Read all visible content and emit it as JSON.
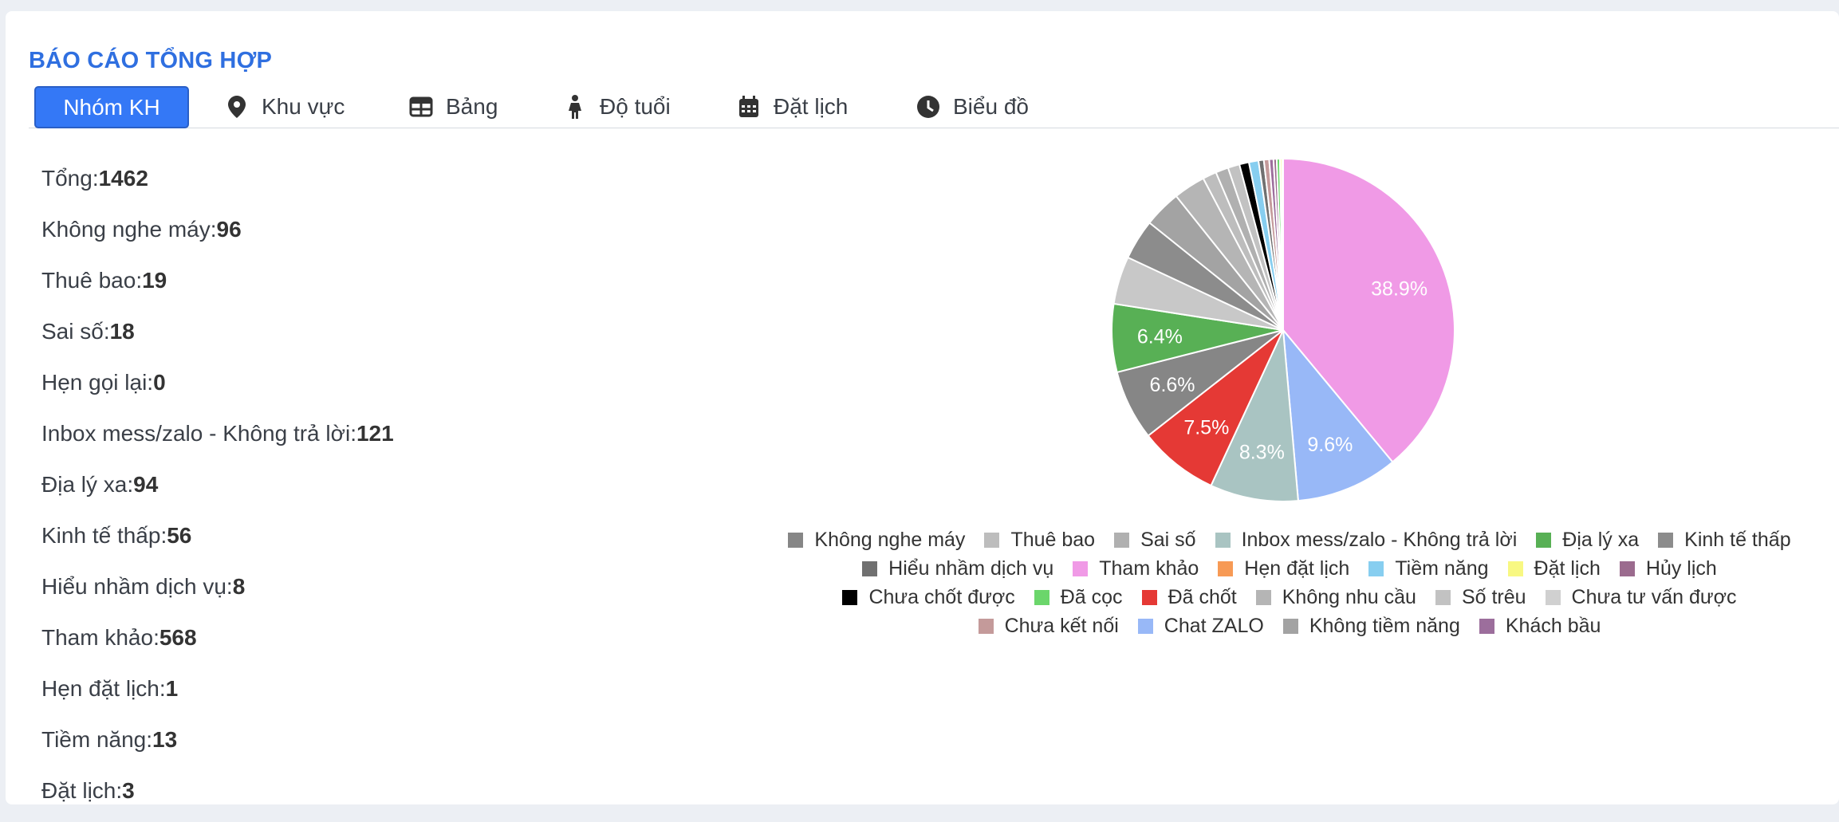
{
  "page": {
    "title": "BÁO CÁO TỔNG HỢP"
  },
  "tabs": [
    {
      "label": "Nhóm KH",
      "icon": ""
    },
    {
      "label": "Khu vực",
      "icon": "map-pin-icon"
    },
    {
      "label": "Bảng",
      "icon": "table-icon"
    },
    {
      "label": "Độ tuổi",
      "icon": "person-icon"
    },
    {
      "label": "Đặt lịch",
      "icon": "calendar-icon"
    },
    {
      "label": "Biểu đồ",
      "icon": "clock-icon"
    }
  ],
  "stats": [
    {
      "label": "Tổng:",
      "value": "1462"
    },
    {
      "label": "Không nghe máy:",
      "value": "96"
    },
    {
      "label": "Thuê bao:",
      "value": "19"
    },
    {
      "label": "Sai số:",
      "value": "18"
    },
    {
      "label": "Hẹn gọi lại:",
      "value": "0"
    },
    {
      "label": "Inbox mess/zalo - Không trả lời:",
      "value": "121"
    },
    {
      "label": "Địa lý xa:",
      "value": "94"
    },
    {
      "label": "Kinh tế thấp:",
      "value": "56"
    },
    {
      "label": "Hiểu nhầm dịch vụ:",
      "value": "8"
    },
    {
      "label": "Tham khảo:",
      "value": "568"
    },
    {
      "label": "Hẹn đặt lịch:",
      "value": "1"
    },
    {
      "label": "Tiềm năng:",
      "value": "13"
    },
    {
      "label": "Đặt lịch:",
      "value": "3"
    }
  ],
  "chart_data": {
    "type": "pie",
    "slices": [
      {
        "name": "Tham khảo",
        "value": 38.9,
        "color": "#f09ae6",
        "label": "38.9%"
      },
      {
        "name": "Chat ZALO",
        "value": 9.6,
        "color": "#98b8f7",
        "label": "9.6%"
      },
      {
        "name": "Inbox mess/zalo - Không trả lời",
        "value": 8.3,
        "color": "#a9c4c2",
        "label": "8.3%"
      },
      {
        "name": "Đã chốt",
        "value": 7.5,
        "color": "#e53935",
        "label": "7.5%"
      },
      {
        "name": "Không nghe máy",
        "value": 6.6,
        "color": "#868686",
        "label": "6.6%"
      },
      {
        "name": "Địa lý xa",
        "value": 6.4,
        "color": "#58b055",
        "label": "6.4%"
      },
      {
        "name": "Chưa tư vấn được",
        "value": 4.5,
        "color": "#c8c8c8",
        "label": ""
      },
      {
        "name": "Kinh tế thấp",
        "value": 3.8,
        "color": "#8c8c8c",
        "label": ""
      },
      {
        "name": "Không tiềm năng",
        "value": 3.5,
        "color": "#a3a3a3",
        "label": ""
      },
      {
        "name": "Không nhu cầu",
        "value": 3.0,
        "color": "#b5b5b5",
        "label": ""
      },
      {
        "name": "Thuê bao",
        "value": 1.3,
        "color": "#bdbdbd",
        "label": ""
      },
      {
        "name": "Sai số",
        "value": 1.2,
        "color": "#b0b0b0",
        "label": ""
      },
      {
        "name": "Số trêu",
        "value": 1.1,
        "color": "#c2c2c2",
        "label": ""
      },
      {
        "name": "Chưa chốt được",
        "value": 0.9,
        "color": "#000000",
        "label": ""
      },
      {
        "name": "Tiềm năng",
        "value": 0.9,
        "color": "#87cef0",
        "label": ""
      },
      {
        "name": "Hiểu nhầm dịch vụ",
        "value": 0.5,
        "color": "#707070",
        "label": ""
      },
      {
        "name": "Chưa kết nối",
        "value": 0.5,
        "color": "#c49a9a",
        "label": ""
      },
      {
        "name": "Khách bầu",
        "value": 0.4,
        "color": "#9c6e9c",
        "label": ""
      },
      {
        "name": "Hủy lịch",
        "value": 0.3,
        "color": "#9b6b8e",
        "label": ""
      },
      {
        "name": "Đã cọc",
        "value": 0.3,
        "color": "#6bd66b",
        "label": ""
      },
      {
        "name": "Đặt lịch",
        "value": 0.2,
        "color": "#f8f882",
        "label": ""
      },
      {
        "name": "Hẹn đặt lịch",
        "value": 0.1,
        "color": "#f79a55",
        "label": ""
      }
    ],
    "legend": [
      {
        "name": "Không nghe máy",
        "color": "#868686"
      },
      {
        "name": "Thuê bao",
        "color": "#bdbdbd"
      },
      {
        "name": "Sai số",
        "color": "#b0b0b0"
      },
      {
        "name": "Inbox mess/zalo - Không trả lời",
        "color": "#a9c4c2"
      },
      {
        "name": "Địa lý xa",
        "color": "#58b055"
      },
      {
        "name": "Kinh tế thấp",
        "color": "#8c8c8c"
      },
      {
        "name": "Hiểu nhầm dịch vụ",
        "color": "#707070"
      },
      {
        "name": "Tham khảo",
        "color": "#f09ae6"
      },
      {
        "name": "Hẹn đặt lịch",
        "color": "#f79a55"
      },
      {
        "name": "Tiềm năng",
        "color": "#87cef0"
      },
      {
        "name": "Đặt lịch",
        "color": "#f8f882"
      },
      {
        "name": "Hủy lịch",
        "color": "#9b6b8e"
      },
      {
        "name": "Chưa chốt được",
        "color": "#000000"
      },
      {
        "name": "Đã cọc",
        "color": "#6bd66b"
      },
      {
        "name": "Đã chốt",
        "color": "#e53935"
      },
      {
        "name": "Không nhu cầu",
        "color": "#b5b5b5"
      },
      {
        "name": "Số trêu",
        "color": "#c2c2c2"
      },
      {
        "name": "Chưa tư vấn được",
        "color": "#d0d0d0"
      },
      {
        "name": "Chưa kết nối",
        "color": "#c49a9a"
      },
      {
        "name": "Chat ZALO",
        "color": "#98b8f7"
      },
      {
        "name": "Không tiềm năng",
        "color": "#a3a3a3"
      },
      {
        "name": "Khách bầu",
        "color": "#9c6e9c"
      }
    ]
  }
}
